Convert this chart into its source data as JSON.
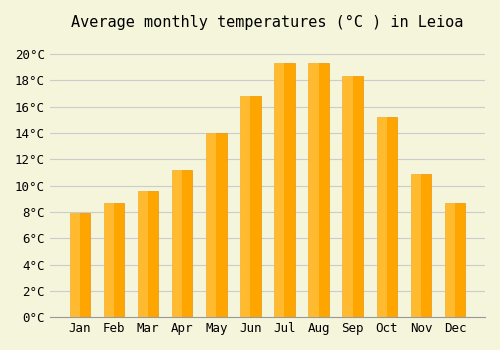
{
  "title": "Average monthly temperatures (°C ) in Leioa",
  "months": [
    "Jan",
    "Feb",
    "Mar",
    "Apr",
    "May",
    "Jun",
    "Jul",
    "Aug",
    "Sep",
    "Oct",
    "Nov",
    "Dec"
  ],
  "values": [
    7.9,
    8.7,
    9.6,
    11.2,
    14.0,
    16.8,
    19.3,
    19.3,
    18.3,
    15.2,
    10.9,
    8.7
  ],
  "bar_color": "#FFA500",
  "bar_edge_color": "#E8940A",
  "background_color": "#F5F5DC",
  "grid_color": "#CCCCCC",
  "ylim": [
    0,
    21
  ],
  "yticks": [
    0,
    2,
    4,
    6,
    8,
    10,
    12,
    14,
    16,
    18,
    20
  ],
  "title_fontsize": 11,
  "tick_fontsize": 9,
  "font_family": "monospace"
}
